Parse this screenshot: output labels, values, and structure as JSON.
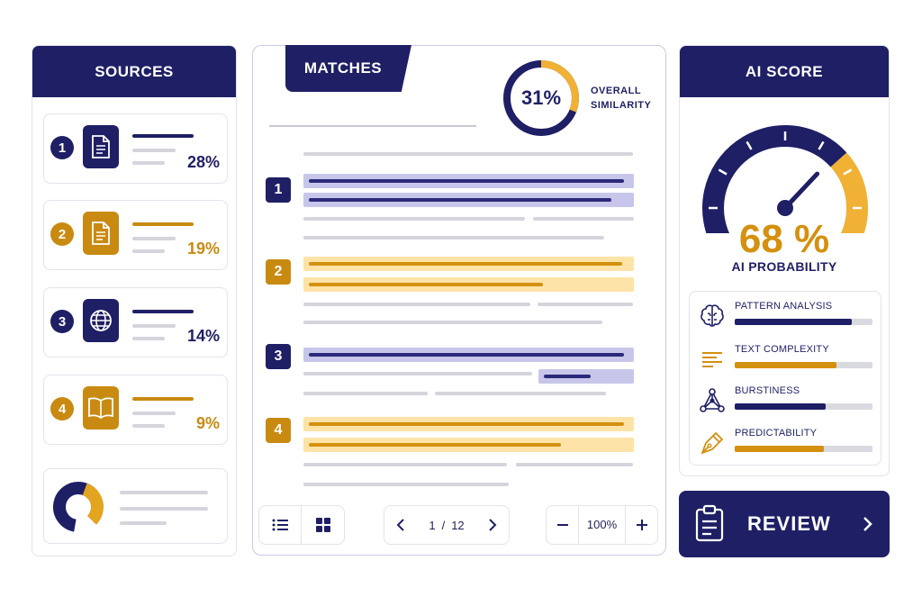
{
  "colors": {
    "navy": "#1f1f66",
    "amber": "#d4900f",
    "amber_light": "#fde3a7",
    "lavender": "#c7c6ea",
    "gray": "#d4d4dc"
  },
  "sources": {
    "title": "SOURCES",
    "items": [
      {
        "num": "1",
        "pct": "28%",
        "icon": "document-icon",
        "accent": "navy"
      },
      {
        "num": "2",
        "pct": "19%",
        "icon": "document-icon",
        "accent": "amber"
      },
      {
        "num": "3",
        "pct": "14%",
        "icon": "globe-icon",
        "accent": "navy"
      },
      {
        "num": "4",
        "pct": "9%",
        "icon": "book-icon",
        "accent": "amber"
      }
    ]
  },
  "matches": {
    "title": "MATCHES",
    "overall_pct": "31%",
    "overall_fraction": 0.31,
    "overall_label_line1": "OVERALL",
    "overall_label_line2": "SIMILARITY",
    "items": [
      {
        "num": "1",
        "accent": "navy"
      },
      {
        "num": "2",
        "accent": "amber"
      },
      {
        "num": "3",
        "accent": "navy"
      },
      {
        "num": "4",
        "accent": "amber"
      }
    ],
    "pagination": {
      "current": "1",
      "separator": "/",
      "total": "12"
    },
    "zoom": "100%"
  },
  "ai_score": {
    "title": "AI SCORE",
    "value": "68 %",
    "value_fraction": 0.68,
    "label": "AI PROBABILITY",
    "metrics": [
      {
        "label": "PATTERN ANALYSIS",
        "fraction": 0.85,
        "color": "navy",
        "icon": "brain-icon"
      },
      {
        "label": "TEXT COMPLEXITY",
        "fraction": 0.74,
        "color": "amber",
        "icon": "text-lines-icon"
      },
      {
        "label": "BURSTINESS",
        "fraction": 0.66,
        "color": "navy",
        "icon": "network-icon"
      },
      {
        "label": "PREDICTABILITY",
        "fraction": 0.65,
        "color": "amber",
        "icon": "pen-nib-icon"
      }
    ]
  },
  "review": {
    "label": "REVIEW"
  }
}
